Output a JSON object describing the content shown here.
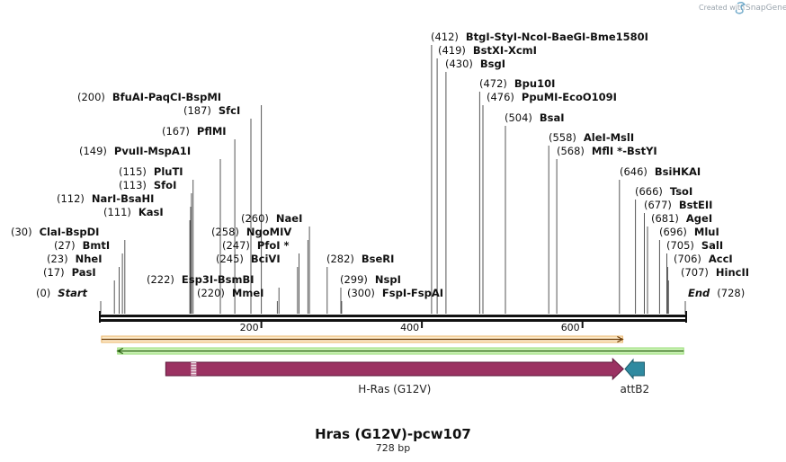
{
  "branding": {
    "credit_text": "Created with",
    "product_name": "SnapGene"
  },
  "map": {
    "title": "Hras (G12V)-pcw107",
    "length_label": "728 bp",
    "length_bp": 728,
    "start_label": "Start",
    "end_label": "End",
    "ruler_ticks": [
      200,
      400,
      600
    ]
  },
  "sites": [
    {
      "name": "ClaI",
      "pos": 30
    },
    {
      "name": "BspDI",
      "pos": 30
    },
    {
      "name": "BmtI",
      "pos": 27
    },
    {
      "name": "NheI",
      "pos": 23
    },
    {
      "name": "PasI",
      "pos": 17
    },
    {
      "name": "BfuAI",
      "pos": 200
    },
    {
      "name": "PaqCI",
      "pos": 200
    },
    {
      "name": "BspMI",
      "pos": 200
    },
    {
      "name": "SfcI",
      "pos": 187
    },
    {
      "name": "PflMI",
      "pos": 167
    },
    {
      "name": "PvuII",
      "pos": 149
    },
    {
      "name": "MspA1I",
      "pos": 149
    },
    {
      "name": "PluTI",
      "pos": 115
    },
    {
      "name": "SfoI",
      "pos": 113
    },
    {
      "name": "NarI",
      "pos": 112
    },
    {
      "name": "BsaHI",
      "pos": 112
    },
    {
      "name": "KasI",
      "pos": 111
    },
    {
      "name": "NaeI",
      "pos": 260
    },
    {
      "name": "NgoMIV",
      "pos": 258
    },
    {
      "name": "PfoI *",
      "pos": 247
    },
    {
      "name": "BciVI",
      "pos": 245
    },
    {
      "name": "Esp3I",
      "pos": 222
    },
    {
      "name": "BsmBI",
      "pos": 222
    },
    {
      "name": "MmeI",
      "pos": 220
    },
    {
      "name": "BseRI",
      "pos": 282
    },
    {
      "name": "NspI",
      "pos": 299
    },
    {
      "name": "FspI",
      "pos": 300
    },
    {
      "name": "FspAI",
      "pos": 300
    },
    {
      "name": "BtgI",
      "pos": 412
    },
    {
      "name": "StyI",
      "pos": 412
    },
    {
      "name": "NcoI",
      "pos": 412
    },
    {
      "name": "BaeGI",
      "pos": 412
    },
    {
      "name": "Bme1580I",
      "pos": 412
    },
    {
      "name": "BstXI",
      "pos": 419
    },
    {
      "name": "XcmI",
      "pos": 419
    },
    {
      "name": "BsgI",
      "pos": 430
    },
    {
      "name": "Bpu10I",
      "pos": 472
    },
    {
      "name": "PpuMI",
      "pos": 476
    },
    {
      "name": "EcoO109I",
      "pos": 476
    },
    {
      "name": "BsaI",
      "pos": 504
    },
    {
      "name": "AleI",
      "pos": 558
    },
    {
      "name": "MslI",
      "pos": 558
    },
    {
      "name": "MflI *",
      "pos": 568
    },
    {
      "name": "BstYI",
      "pos": 568
    },
    {
      "name": "BsiHKAI",
      "pos": 646
    },
    {
      "name": "TsoI",
      "pos": 666
    },
    {
      "name": "BstEII",
      "pos": 677
    },
    {
      "name": "AgeI",
      "pos": 681
    },
    {
      "name": "MluI",
      "pos": 696
    },
    {
      "name": "SalI",
      "pos": 705
    },
    {
      "name": "AccI",
      "pos": 706
    },
    {
      "name": "HincII",
      "pos": 707
    }
  ],
  "label_rows": [
    {
      "pos": 0,
      "parts": [
        "Start"
      ],
      "numbers": [
        "(0)"
      ],
      "italic": true
    },
    {
      "pos": 30,
      "parts": [
        "ClaI",
        "BspDI"
      ],
      "numbers": [
        "(30)"
      ]
    },
    {
      "pos": 27,
      "parts": [
        "BmtI"
      ],
      "numbers": [
        "(27)"
      ]
    },
    {
      "pos": 23,
      "parts": [
        "NheI"
      ],
      "numbers": [
        "(23)"
      ]
    },
    {
      "pos": 17,
      "parts": [
        "PasI"
      ],
      "numbers": [
        "(17)"
      ]
    },
    {
      "pos": 200,
      "parts": [
        "BfuAI",
        "PaqCI",
        "BspMI"
      ],
      "numbers": [
        "(200)"
      ]
    },
    {
      "pos": 187,
      "parts": [
        "SfcI"
      ],
      "numbers": [
        "(187)"
      ]
    },
    {
      "pos": 167,
      "parts": [
        "PflMI"
      ],
      "numbers": [
        "(167)"
      ]
    },
    {
      "pos": 149,
      "parts": [
        "PvuII",
        "MspA1I"
      ],
      "numbers": [
        "(149)"
      ]
    },
    {
      "pos": 115,
      "parts": [
        "PluTI"
      ],
      "numbers": [
        "(115)"
      ]
    },
    {
      "pos": 113,
      "parts": [
        "SfoI"
      ],
      "numbers": [
        "(113)"
      ]
    },
    {
      "pos": 112,
      "parts": [
        "NarI",
        "BsaHI"
      ],
      "numbers": [
        "(112)"
      ]
    },
    {
      "pos": 111,
      "parts": [
        "KasI"
      ],
      "numbers": [
        "(111)"
      ]
    },
    {
      "pos": 260,
      "parts": [
        "NaeI"
      ],
      "numbers": [
        "(260)"
      ]
    },
    {
      "pos": 258,
      "parts": [
        "NgoMIV"
      ],
      "numbers": [
        "(258)"
      ]
    },
    {
      "pos": 247,
      "parts": [
        "PfoI *"
      ],
      "numbers": [
        "(247)"
      ]
    },
    {
      "pos": 245,
      "parts": [
        "BciVI"
      ],
      "numbers": [
        "(245)"
      ]
    },
    {
      "pos": 222,
      "parts": [
        "Esp3I",
        "BsmBI"
      ],
      "numbers": [
        "(222)"
      ]
    },
    {
      "pos": 220,
      "parts": [
        "MmeI"
      ],
      "numbers": [
        "(220)"
      ]
    },
    {
      "pos": 282,
      "parts": [
        "BseRI"
      ],
      "numbers": [
        "(282)"
      ]
    },
    {
      "pos": 299,
      "parts": [
        "NspI"
      ],
      "numbers": [
        "(299)"
      ]
    },
    {
      "pos": 300,
      "parts": [
        "FspI",
        "FspAI"
      ],
      "numbers": [
        "(300)"
      ]
    },
    {
      "pos": 412,
      "parts": [
        "BtgI",
        "StyI",
        "NcoI",
        "BaeGI",
        "Bme1580I"
      ],
      "numbers": [
        "(412)"
      ]
    },
    {
      "pos": 419,
      "parts": [
        "BstXI",
        "XcmI"
      ],
      "numbers": [
        "(419)"
      ]
    },
    {
      "pos": 430,
      "parts": [
        "BsgI"
      ],
      "numbers": [
        "(430)"
      ]
    },
    {
      "pos": 472,
      "parts": [
        "Bpu10I"
      ],
      "numbers": [
        "(472)"
      ]
    },
    {
      "pos": 476,
      "parts": [
        "PpuMI",
        "EcoO109I"
      ],
      "numbers": [
        "(476)"
      ]
    },
    {
      "pos": 504,
      "parts": [
        "BsaI"
      ],
      "numbers": [
        "(504)"
      ]
    },
    {
      "pos": 558,
      "parts": [
        "AleI",
        "MslI"
      ],
      "numbers": [
        "(558)"
      ]
    },
    {
      "pos": 568,
      "parts": [
        "MflI *",
        "BstYI"
      ],
      "numbers": [
        "(568)"
      ]
    },
    {
      "pos": 646,
      "parts": [
        "BsiHKAI"
      ],
      "numbers": [
        "(646)"
      ]
    },
    {
      "pos": 666,
      "parts": [
        "TsoI"
      ],
      "numbers": [
        "(666)"
      ]
    },
    {
      "pos": 677,
      "parts": [
        "BstEII"
      ],
      "numbers": [
        "(677)"
      ]
    },
    {
      "pos": 681,
      "parts": [
        "AgeI"
      ],
      "numbers": [
        "(681)"
      ]
    },
    {
      "pos": 696,
      "parts": [
        "MluI"
      ],
      "numbers": [
        "(696)"
      ]
    },
    {
      "pos": 705,
      "parts": [
        "SalI"
      ],
      "numbers": [
        "(705)"
      ]
    },
    {
      "pos": 706,
      "parts": [
        "AccI"
      ],
      "numbers": [
        "(706)"
      ]
    },
    {
      "pos": 707,
      "parts": [
        "HincII"
      ],
      "numbers": [
        "(707)"
      ]
    },
    {
      "pos": 728,
      "parts": [
        "End"
      ],
      "numbers": [
        "(728)"
      ],
      "italic": true
    }
  ],
  "features": [
    {
      "name": "orange-orf",
      "label": "",
      "start": 1,
      "end": 650,
      "direction": "forward",
      "color": "#f0a23b"
    },
    {
      "name": "green-orf",
      "label": "",
      "start": 21,
      "end": 726,
      "direction": "reverse",
      "color": "#8fdc6c"
    },
    {
      "name": "h-ras",
      "label": "H-Ras (G12V)",
      "start": 81,
      "end": 651,
      "direction": "forward",
      "color": "#9b3262"
    },
    {
      "name": "attb2",
      "label": "attB2",
      "start": 653,
      "end": 677,
      "direction": "reverse",
      "color": "#2f8aa0"
    }
  ]
}
